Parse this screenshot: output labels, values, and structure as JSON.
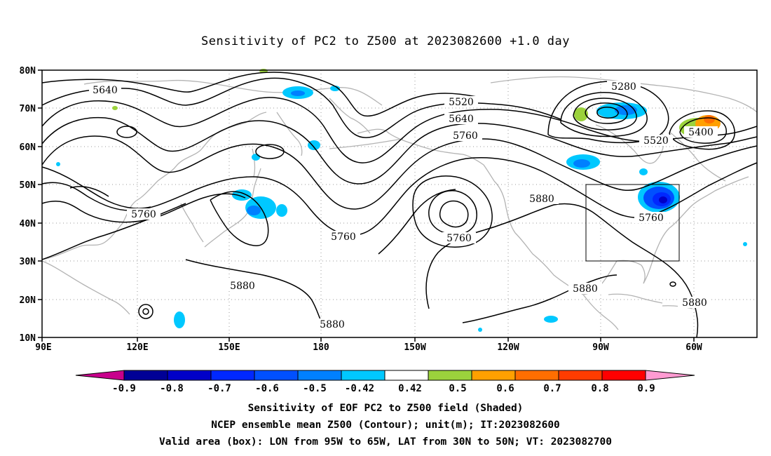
{
  "title": "Sensitivity of PC2 to Z500 at 2023082600 +1.0 day",
  "map": {
    "projection": "cylindrical equidistant",
    "lon_range": "90E to 50W (across dateline)",
    "lat_range": "10N to 80N",
    "lat_ticks": [
      "10N",
      "20N",
      "30N",
      "40N",
      "50N",
      "60N",
      "70N",
      "80N"
    ],
    "lon_ticks": [
      "90E",
      "120E",
      "150E",
      "180",
      "150W",
      "120W",
      "90W",
      "60W"
    ],
    "grid": "dotted",
    "coastline_color": "#b3b3b3",
    "contour_color": "#000000",
    "contour_labels": [
      "5640",
      "5520",
      "5640",
      "5760",
      "5280",
      "5400",
      "5520",
      "5760",
      "5760",
      "5760",
      "5880",
      "5760",
      "5880",
      "5880",
      "5880",
      "5880"
    ],
    "valid_box": {
      "lon": "95W to 65W",
      "lat": "30N to 50N"
    }
  },
  "colorbar": {
    "labels": [
      "-0.9",
      "-0.8",
      "-0.7",
      "-0.6",
      "-0.5",
      "-0.42",
      "0.42",
      "0.5",
      "0.6",
      "0.7",
      "0.8",
      "0.9"
    ],
    "colors": [
      "#c8008c",
      "#000096",
      "#0000c8",
      "#0028ff",
      "#0050ff",
      "#0080ff",
      "#00c8ff",
      "#ffffff",
      "#9bd23c",
      "#ffa000",
      "#ff6e00",
      "#ff3c00",
      "#ff0000",
      "#ff9bd2"
    ]
  },
  "captions": [
    "Sensitivity of EOF PC2 to Z500 field (Shaded)",
    "NCEP ensemble mean Z500 (Contour); unit(m); IT:2023082600",
    "Valid area (box): LON from 95W to 65W, LAT from 30N to 50N; VT: 2023082700"
  ]
}
